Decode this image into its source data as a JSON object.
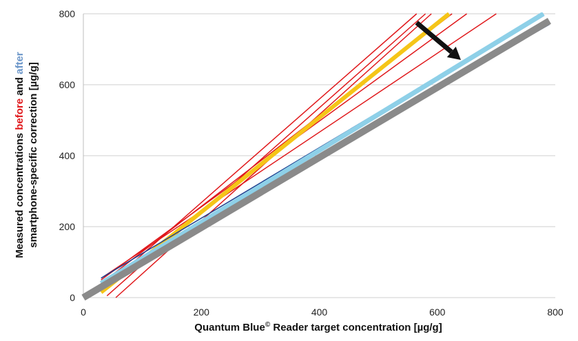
{
  "chart_data": {
    "type": "line",
    "xlabel": {
      "main": "Quantum Blue",
      "sup": "©",
      "rest": " Reader target concentration [µg/g]"
    },
    "ylabel": {
      "line1": [
        {
          "text": "Measured concentrations ",
          "color": "#111111"
        },
        {
          "text": "before",
          "color": "#e0181b"
        },
        {
          "text": " and ",
          "color": "#111111"
        },
        {
          "text": "after",
          "color": "#6b96c9"
        }
      ],
      "line2": "smartphone-specific correction [µg/g]"
    },
    "xlim": [
      0,
      800
    ],
    "ylim": [
      0,
      800
    ],
    "x_ticks": [
      "0",
      "200",
      "400",
      "600",
      "800"
    ],
    "y_ticks": [
      "0",
      "200",
      "400",
      "600",
      "800"
    ],
    "grid": "horizontal",
    "legend": "none",
    "annotations": [
      {
        "type": "arrow",
        "from": [
          565,
          775
        ],
        "to": [
          640,
          670
        ],
        "color": "#111111"
      }
    ],
    "series": [
      {
        "color": "#e0181b",
        "width": 1.5,
        "x": [
          30,
          565
        ],
        "y": [
          20,
          800
        ]
      },
      {
        "color": "#e0181b",
        "width": 1.5,
        "x": [
          40,
          580
        ],
        "y": [
          5,
          800
        ]
      },
      {
        "color": "#e0181b",
        "width": 1.5,
        "x": [
          55,
          590
        ],
        "y": [
          0,
          800
        ]
      },
      {
        "color": "#e0181b",
        "width": 1.5,
        "x": [
          30,
          625
        ],
        "y": [
          40,
          800
        ]
      },
      {
        "color": "#e0181b",
        "width": 1.5,
        "x": [
          30,
          650
        ],
        "y": [
          50,
          800
        ]
      },
      {
        "color": "#e0181b",
        "width": 1.5,
        "x": [
          35,
          700
        ],
        "y": [
          60,
          800
        ]
      },
      {
        "color": "#f5c518",
        "width": 6,
        "x": [
          30,
          620
        ],
        "y": [
          15,
          800
        ]
      },
      {
        "color": "#1c3f8f",
        "width": 1.5,
        "x": [
          30,
          780
        ],
        "y": [
          55,
          800
        ]
      },
      {
        "color": "#1c3f8f",
        "width": 1.5,
        "x": [
          30,
          790
        ],
        "y": [
          45,
          770
        ]
      },
      {
        "color": "#8ed0e8",
        "width": 7,
        "x": [
          30,
          780
        ],
        "y": [
          40,
          800
        ]
      },
      {
        "color": "#8a8a8a",
        "width": 10,
        "x": [
          0,
          790
        ],
        "y": [
          0,
          780
        ]
      }
    ]
  }
}
